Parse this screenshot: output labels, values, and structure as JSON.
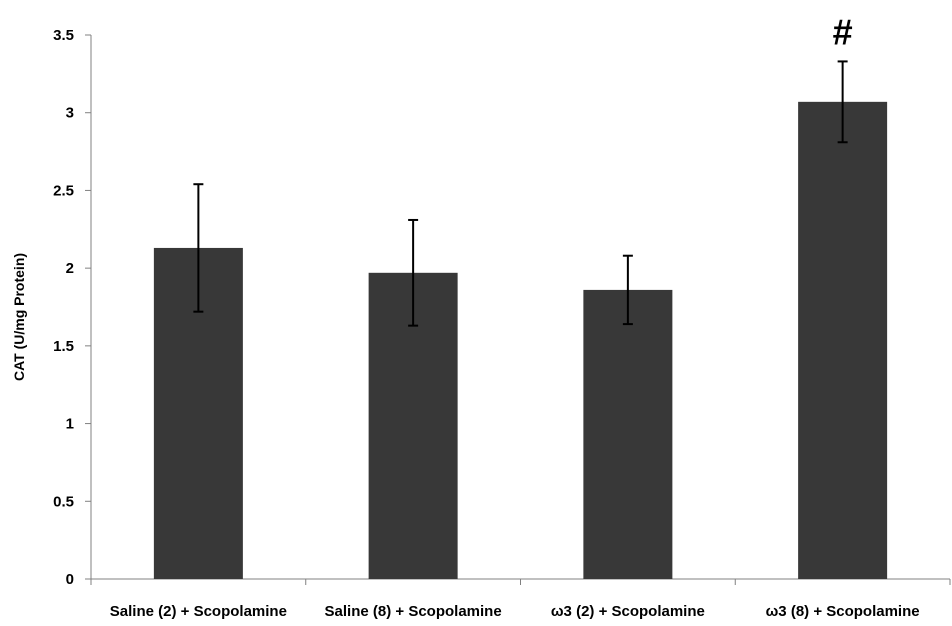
{
  "chart_data": {
    "type": "bar",
    "title": "",
    "xlabel": "",
    "ylabel": "CAT (U/mg Protein)",
    "ylim": [
      0,
      3.5
    ],
    "yticks": [
      "0",
      "0.5",
      "1",
      "1.5",
      "2",
      "2.5",
      "3",
      "3.5"
    ],
    "grid": false,
    "legend": "none",
    "bar_color": "#383838",
    "categories": [
      "Saline (2) + Scopolamine",
      "Saline (8) + Scopolamine",
      "ω3 (2) + Scopolamine",
      "ω3 (8) + Scopolamine"
    ],
    "values": [
      2.13,
      1.97,
      1.86,
      3.07
    ],
    "errors": [
      0.41,
      0.34,
      0.22,
      0.26
    ],
    "annotations": [
      "",
      "",
      "",
      "#"
    ]
  }
}
